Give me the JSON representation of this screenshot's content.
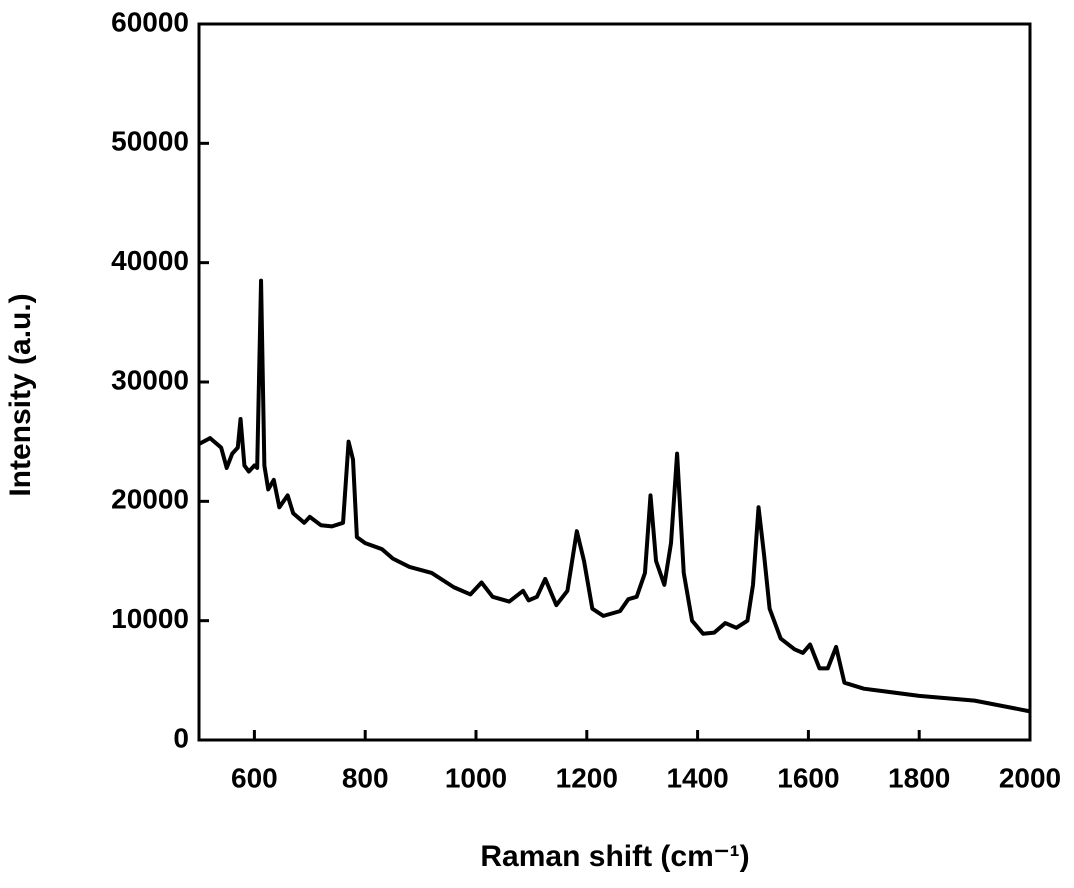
{
  "chart_data": {
    "type": "line",
    "xlabel": "Raman shift (cm⁻¹)",
    "ylabel": "Intensity (a.u.)",
    "xlim": [
      500,
      2000
    ],
    "ylim": [
      0,
      60000
    ],
    "xticks": [
      600,
      800,
      1000,
      1200,
      1400,
      1600,
      1800,
      2000
    ],
    "yticks": [
      0,
      10000,
      20000,
      30000,
      40000,
      50000,
      60000
    ],
    "x": [
      500,
      520,
      540,
      550,
      560,
      570,
      575,
      582,
      590,
      600,
      605,
      612,
      618,
      625,
      635,
      645,
      660,
      670,
      690,
      700,
      720,
      740,
      760,
      770,
      778,
      785,
      800,
      830,
      850,
      880,
      920,
      960,
      990,
      1010,
      1030,
      1060,
      1085,
      1095,
      1110,
      1125,
      1145,
      1165,
      1182,
      1195,
      1210,
      1230,
      1260,
      1275,
      1290,
      1305,
      1315,
      1325,
      1340,
      1352,
      1363,
      1375,
      1390,
      1410,
      1430,
      1450,
      1470,
      1490,
      1500,
      1510,
      1520,
      1530,
      1550,
      1575,
      1590,
      1603,
      1620,
      1635,
      1650,
      1665,
      1700,
      1800,
      1900,
      2000
    ],
    "series": [
      {
        "color": "#000000",
        "values": [
          24800,
          25300,
          24500,
          22800,
          24000,
          24500,
          26900,
          23000,
          22500,
          23000,
          22800,
          38500,
          23000,
          21000,
          21800,
          19500,
          20500,
          19000,
          18200,
          18700,
          18000,
          17900,
          18200,
          25000,
          23500,
          17000,
          16500,
          16000,
          15200,
          14500,
          14000,
          12800,
          12200,
          13200,
          12000,
          11600,
          12500,
          11700,
          12000,
          13500,
          11300,
          12500,
          17500,
          15000,
          11000,
          10400,
          10800,
          11800,
          12000,
          14000,
          20500,
          15000,
          13000,
          16500,
          24000,
          14000,
          10000,
          8900,
          9000,
          9800,
          9400,
          10000,
          13000,
          19500,
          15500,
          11000,
          8500,
          7600,
          7300,
          8000,
          6000,
          6000,
          7800,
          4800,
          4300,
          3700,
          3300,
          2400
        ]
      }
    ]
  }
}
